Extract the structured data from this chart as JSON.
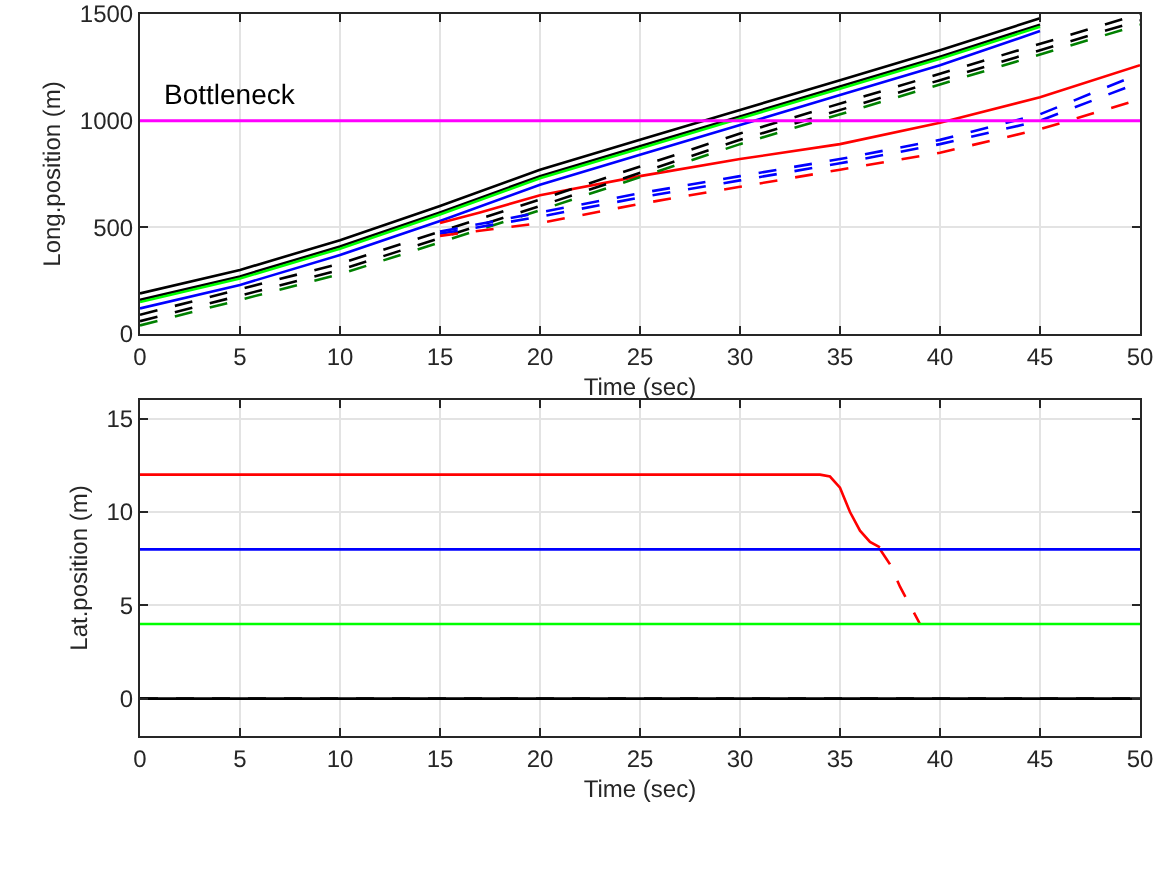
{
  "chart_data": [
    {
      "type": "line",
      "xlabel": "Time (sec)",
      "ylabel": "Long.position (m)",
      "xlim": [
        0,
        50
      ],
      "xticks": [
        0,
        5,
        10,
        15,
        20,
        25,
        30,
        35,
        40,
        45,
        50
      ],
      "ylim": [
        0,
        1500
      ],
      "yticks": [
        0,
        500,
        1000,
        1500
      ],
      "grid": true,
      "marker": "none",
      "ref_lines": [
        {
          "axis": "y",
          "value": 1000,
          "label": "Bottleneck",
          "color": "#ff00ff",
          "line_style": "solid"
        }
      ],
      "series": [
        {
          "color": "#000000",
          "line_style": "solid",
          "x": [
            0,
            5,
            10,
            15,
            20,
            25,
            30,
            35,
            40,
            45
          ],
          "values": [
            190,
            300,
            440,
            600,
            770,
            910,
            1050,
            1190,
            1330,
            1480
          ]
        },
        {
          "color": "#000000",
          "line_style": "solid",
          "x": [
            0,
            5,
            10,
            15,
            20,
            25,
            30,
            35,
            40,
            45
          ],
          "values": [
            160,
            270,
            410,
            570,
            740,
            880,
            1020,
            1160,
            1300,
            1450
          ]
        },
        {
          "color": "#00ff00",
          "line_style": "solid",
          "x": [
            0,
            5,
            10,
            15,
            20,
            25,
            30,
            35,
            40,
            45
          ],
          "values": [
            150,
            260,
            400,
            560,
            730,
            870,
            1010,
            1150,
            1290,
            1440
          ]
        },
        {
          "color": "#0000ff",
          "line_style": "solid",
          "x": [
            0,
            5,
            10,
            15,
            20,
            25,
            30,
            35,
            40,
            45
          ],
          "values": [
            120,
            230,
            370,
            530,
            700,
            840,
            980,
            1120,
            1260,
            1420
          ]
        },
        {
          "color": "#ff0000",
          "line_style": "solid",
          "x": [
            15,
            17,
            20,
            25,
            30,
            35,
            40,
            45,
            50
          ],
          "values": [
            520,
            570,
            650,
            740,
            820,
            890,
            990,
            1110,
            1260
          ]
        },
        {
          "color": "#000000",
          "line_style": "dashed",
          "x": [
            0,
            10,
            20,
            30,
            40,
            50
          ],
          "values": [
            90,
            330,
            630,
            940,
            1220,
            1500
          ]
        },
        {
          "color": "#000000",
          "line_style": "dashed",
          "x": [
            0,
            10,
            20,
            30,
            40,
            50
          ],
          "values": [
            60,
            300,
            600,
            910,
            1190,
            1470
          ]
        },
        {
          "color": "#008000",
          "line_style": "dashed",
          "x": [
            0,
            10,
            20,
            30,
            40,
            50
          ],
          "values": [
            40,
            280,
            580,
            890,
            1170,
            1450
          ]
        },
        {
          "color": "#0000ff",
          "line_style": "dashed",
          "x": [
            15,
            20,
            25,
            30,
            35,
            40,
            45,
            50
          ],
          "values": [
            480,
            570,
            660,
            740,
            820,
            910,
            1030,
            1220
          ]
        },
        {
          "color": "#0000ff",
          "line_style": "dashed",
          "x": [
            15,
            20,
            25,
            30,
            35,
            40,
            45,
            50
          ],
          "values": [
            470,
            550,
            640,
            720,
            800,
            890,
            1000,
            1180
          ]
        },
        {
          "color": "#ff0000",
          "line_style": "dashed",
          "x": [
            15,
            20,
            25,
            30,
            35,
            40,
            45,
            50
          ],
          "values": [
            460,
            520,
            610,
            690,
            770,
            850,
            960,
            1100
          ]
        }
      ]
    },
    {
      "type": "line",
      "xlabel": "Time (sec)",
      "ylabel": "Lat.position (m)",
      "xlim": [
        0,
        50
      ],
      "xticks": [
        0,
        5,
        10,
        15,
        20,
        25,
        30,
        35,
        40,
        45,
        50
      ],
      "ylim": [
        -2,
        16
      ],
      "yticks": [
        0,
        5,
        10,
        15
      ],
      "grid": true,
      "marker": "none",
      "series": [
        {
          "color": "#ff0000",
          "line_style": "solid",
          "x": [
            0,
            34,
            34.5,
            35,
            35.5,
            36,
            36.5,
            37
          ],
          "values": [
            12,
            12,
            11.9,
            11.3,
            10,
            9,
            8.4,
            8.1
          ]
        },
        {
          "color": "#ff0000",
          "line_style": "dashed",
          "x": [
            37,
            37.5,
            38,
            38.5,
            39
          ],
          "values": [
            8,
            7.2,
            6,
            5,
            4
          ]
        },
        {
          "color": "#0000ff",
          "line_style": "solid",
          "x": [
            0,
            50
          ],
          "values": [
            8,
            8
          ]
        },
        {
          "color": "#00ff00",
          "line_style": "solid",
          "x": [
            0,
            50
          ],
          "values": [
            4,
            4
          ]
        },
        {
          "color": "#000000",
          "line_style": "solid",
          "x": [
            0,
            50
          ],
          "values": [
            0,
            0
          ]
        },
        {
          "color": "#000000",
          "line_style": "dashed",
          "x": [
            0,
            50
          ],
          "values": [
            0,
            0
          ]
        }
      ]
    }
  ]
}
